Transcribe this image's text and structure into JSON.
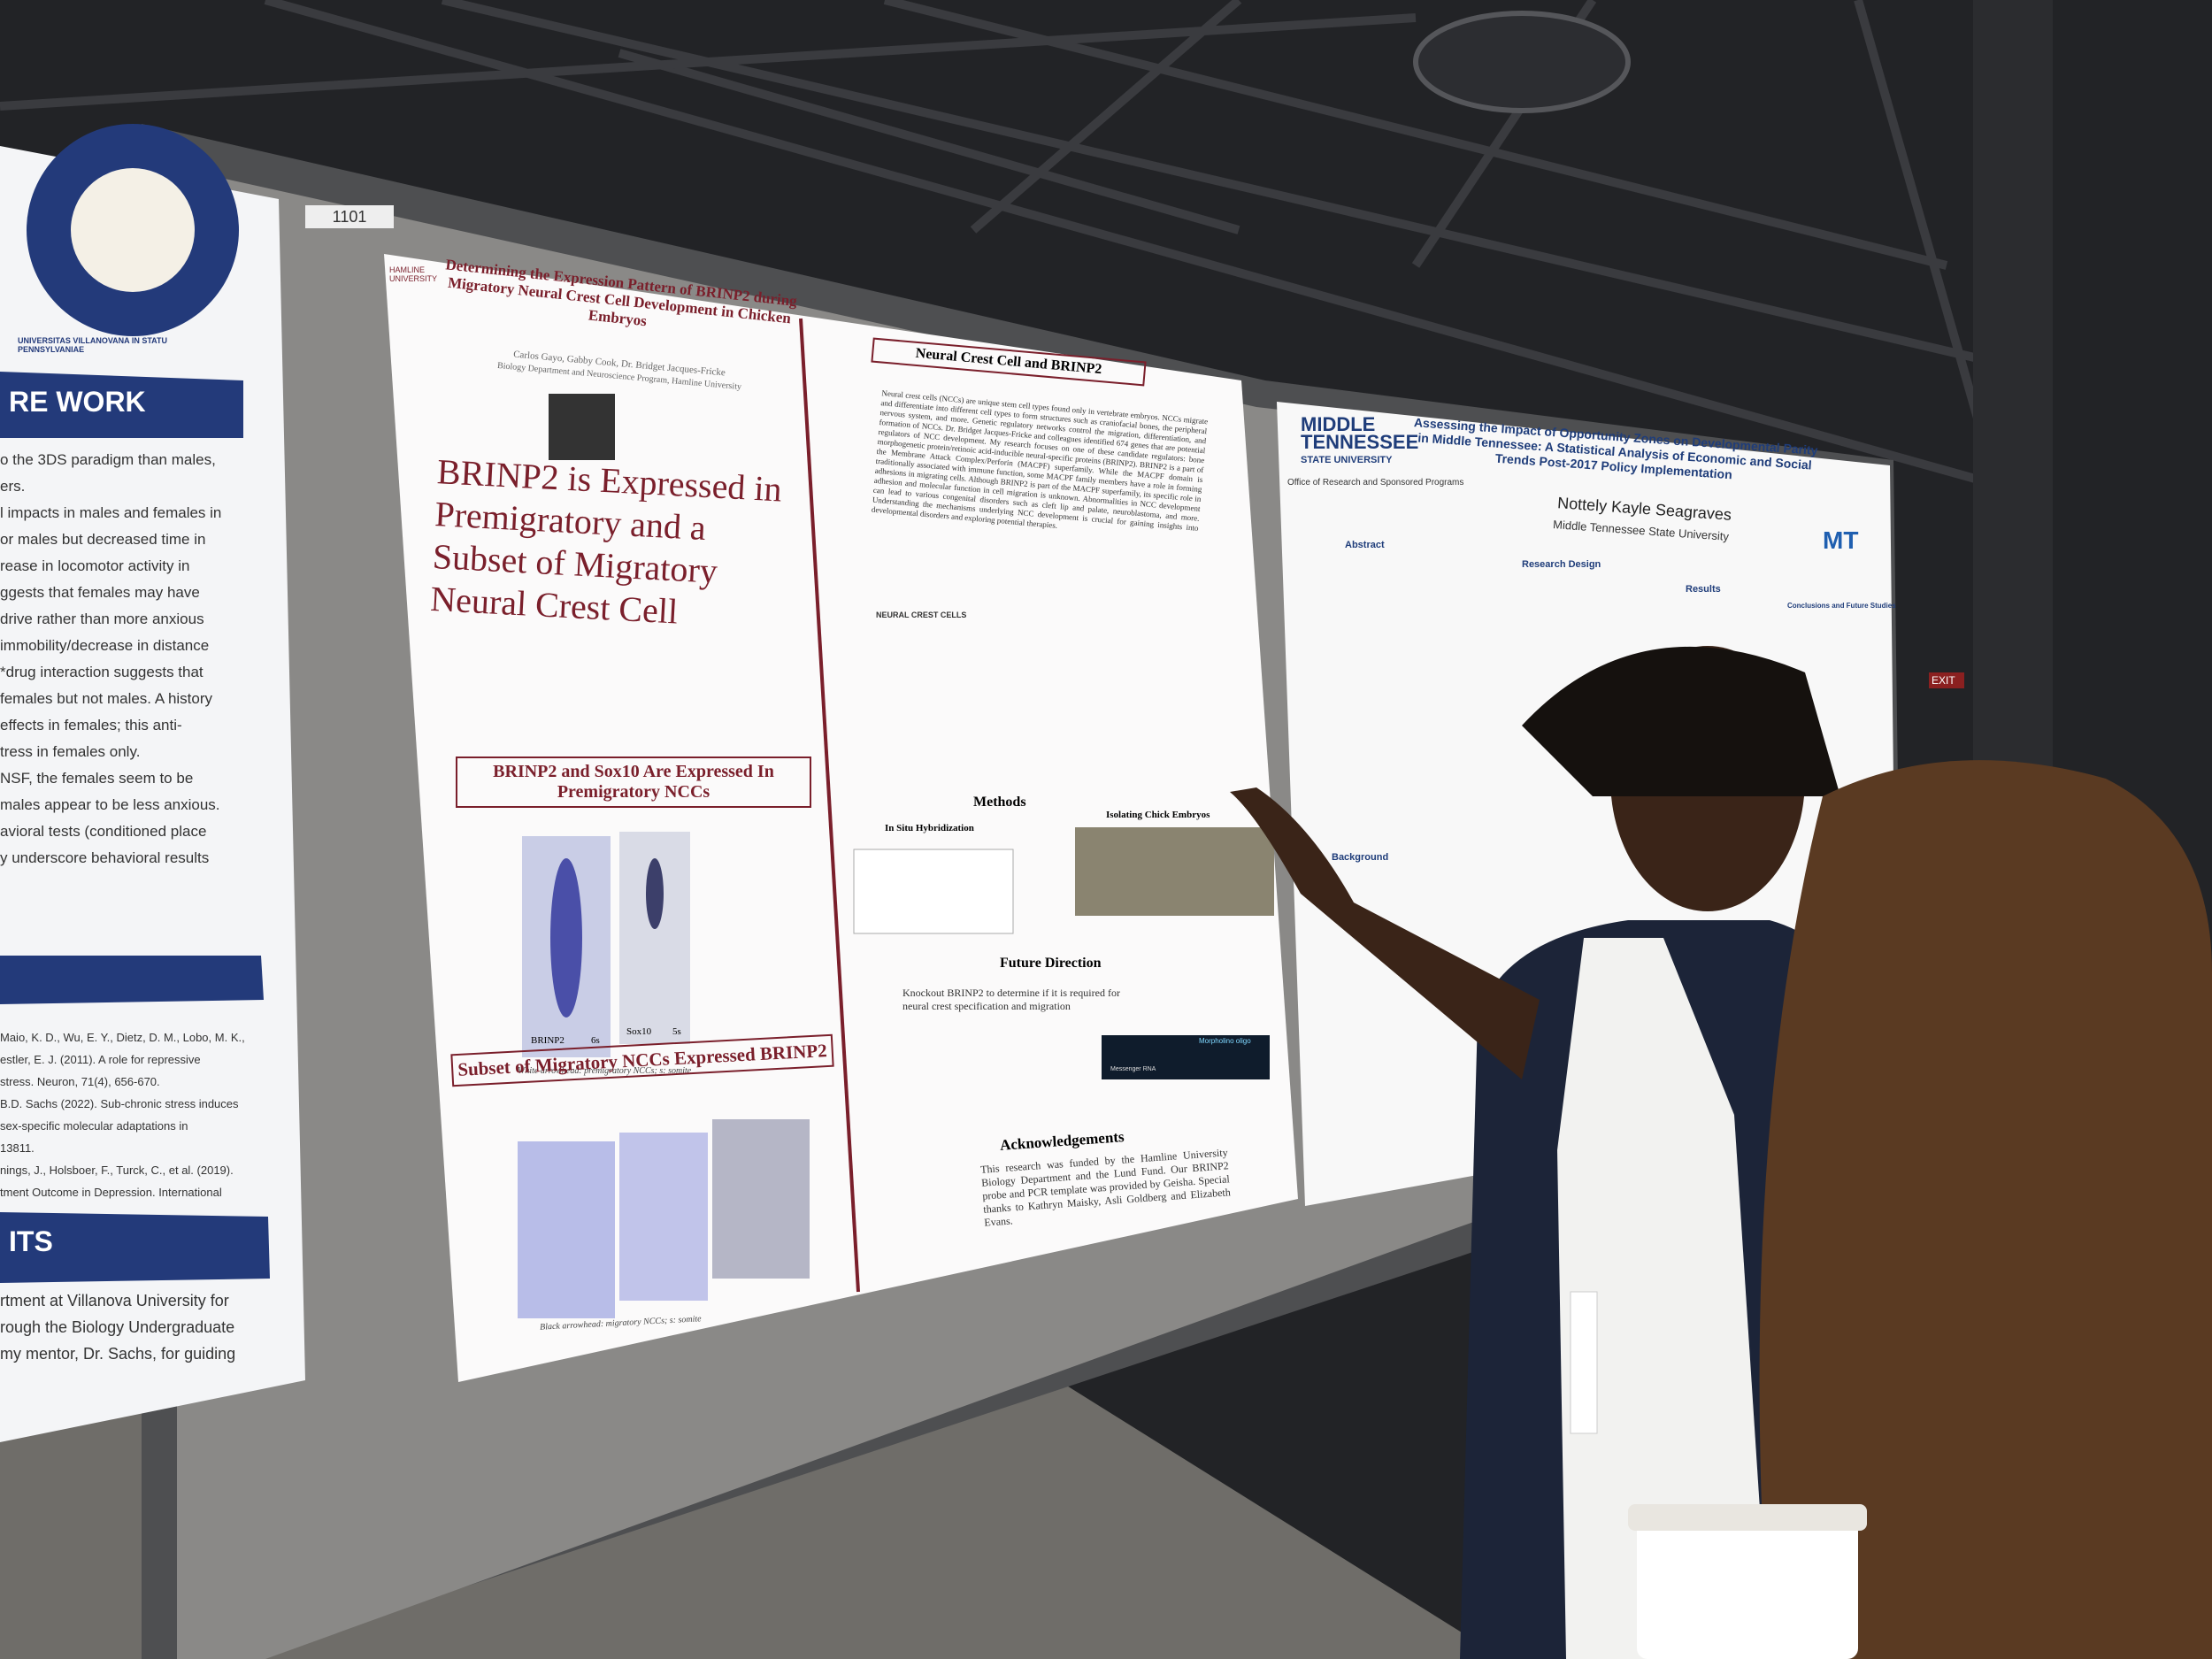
{
  "board_label": "1101",
  "left_poster": {
    "seal": "UNIVERSITAS VILLANOVANA IN STATU PENNSYLVANIAE",
    "heading_1": "RE WORK",
    "body_1": [
      "o the 3DS paradigm than males,",
      "ers.",
      "l impacts in males and females in",
      "or males but decreased time in",
      "rease in locomotor activity in",
      "ggests that females may have",
      "drive rather than more anxious",
      "immobility/decrease in distance",
      "*drug interaction suggests that",
      "females but not males. A history",
      "effects in females; this anti-",
      "tress in females only.",
      "NSF, the females seem to be",
      "males appear to be less anxious.",
      "avioral tests (conditioned place",
      "y underscore behavioral results"
    ],
    "references": [
      "Maio, K. D., Wu, E. Y., Dietz, D. M., Lobo, M. K.,",
      "estler, E. J. (2011). A role for repressive",
      "stress. Neuron, 71(4), 656-670.",
      "B.D. Sachs (2022). Sub-chronic stress induces",
      "sex-specific molecular adaptations in",
      "13811.",
      "nings, J., Holsboer, F., Turck, C., et al. (2019).",
      "tment Outcome in Depression. International"
    ],
    "heading_2": "ITS",
    "body_2": [
      "rtment at Villanova University for",
      "rough the Biology Undergraduate",
      "my mentor, Dr. Sachs, for guiding"
    ]
  },
  "center_poster": {
    "logo": "HAMLINE UNIVERSITY",
    "title": "Determining the Expression Pattern of BRINP2 during Migratory Neural Crest Cell Development in Chicken Embryos",
    "authors": "Carlos Gayo, Gabby Cook, Dr. Bridget Jacques-Fricke",
    "affiliation": "Biology Department and Neuroscience Program, Hamline University",
    "headline": "BRINP2 is Expressed in Premigratory and a Subset of Migratory Neural Crest Cell",
    "section_1": "BRINP2 and Sox10 Are Expressed In Premigratory NCCs",
    "panel_labels": [
      "BRINP2",
      "6s",
      "Sox10",
      "5s"
    ],
    "caption_1": "White arrowhead: premigratory NCCs; s: somite",
    "section_2": "Subset of Migratory NCCs Expressed BRINP2",
    "caption_2": "Black arrowhead: migratory NCCs; s: somite",
    "intro_heading": "Neural Crest Cell and BRINP2",
    "intro_text": "Neural crest cells (NCCs) are unique stem cell types found only in vertebrate embryos. NCCs migrate and differentiate into different cell types to form structures such as craniofacial bones, the peripheral nervous system, and more. Genetic regulatory networks control the migration, differentiation, and formation of NCCs. Dr. Bridget Jacques-Fricke and colleagues identified 674 genes that are potential regulators of NCC development. My research focuses on one of these candidate regulators: bone morphogenetic protein/retinoic acid-inducible neural-specific proteins (BRINP2). BRINP2 is a part of the Membrane Attack Complex/Perforin (MACPF) superfamily. While the MACPF domain is traditionally associated with immune function, some MACPF family members have a role in forming adhesions in migrating cells. Although BRINP2 is part of the MACPF superfamily, its specific role in adhesion and molecular function in cell migration is unknown. Abnormalities in NCC development can lead to various congenital disorders such as cleft lip and palate, neuroblastoma, and more. Understanding the mechanisms underlying NCC development is crucial for gaining insights into developmental disorders and exploring potential therapies.",
    "diagram_label": "NEURAL CREST CELLS",
    "methods_heading": "Methods",
    "methods_left": "In Situ Hybridization",
    "methods_right": "Isolating Chick Embryos",
    "future_heading": "Future Direction",
    "future_text": "Knockout BRINP2 to determine if it is required for neural crest specification and migration",
    "future_labels": [
      "Morpholino oligo",
      "Messenger RNA"
    ],
    "ack_heading": "Acknowledgements",
    "ack_text": "This research was funded by the Hamline University Biology Department and the Lund Fund. Our BRINP2 probe and PCR template was provided by Geisha. Special thanks to Kathryn Maisky, Asli Goldberg and Elizabeth Evans."
  },
  "right_poster": {
    "logo": [
      "MIDDLE",
      "TENNESSEE",
      "STATE UNIVERSITY"
    ],
    "office": "Office of Research and Sponsored Programs",
    "title": "Assessing the Impact of Opportunity Zones on Developmental Parity in Middle Tennessee: A Statistical Analysis of Economic and Social Trends Post-2017 Policy Implementation",
    "author": "Nottely Kayle Seagraves",
    "affiliation": "Middle Tennessee State University",
    "abstract_heading": "Abstract",
    "design_heading": "Research Design",
    "results_heading": "Results",
    "conclusions_heading": "Conclusions and Future Studies",
    "background_heading": "Background",
    "logo_right": "MT"
  },
  "exit_sign": "EXIT"
}
